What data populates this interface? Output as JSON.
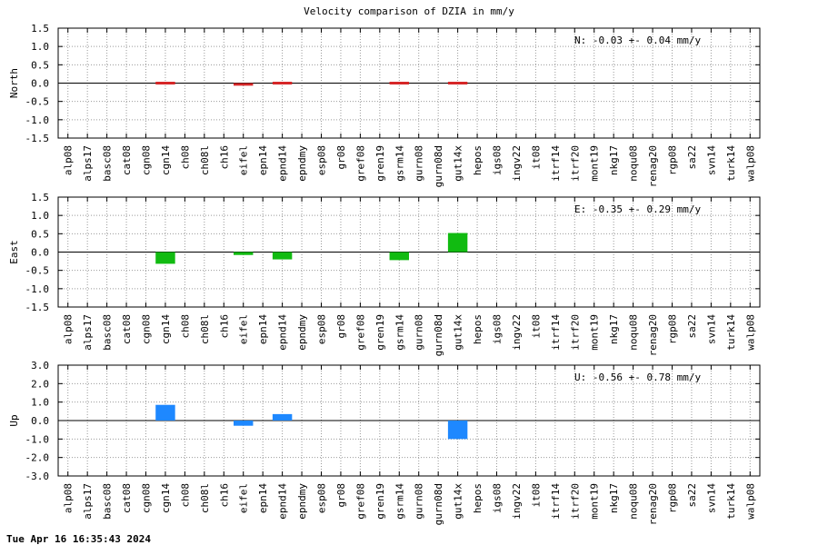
{
  "chart_data": {
    "title": "Velocity comparison of DZIA in mm/y",
    "timestamp": "Tue Apr 16 16:35:43 2024",
    "categories": [
      "alp08",
      "alps17",
      "basc08",
      "cat08",
      "cgn08",
      "cgn14",
      "ch08",
      "ch08l",
      "ch16",
      "eifel",
      "epn14",
      "epnd14",
      "epndmy",
      "esp08",
      "gr08",
      "gref08",
      "gren19",
      "gsrm14",
      "gurn08",
      "gurn08d",
      "gut14x",
      "hepos",
      "igs08",
      "ingv22",
      "it08",
      "itrf14",
      "itrf20",
      "mont19",
      "nkg17",
      "noqu08",
      "renag20",
      "rgp08",
      "sa22",
      "svn14",
      "turk14",
      "walp08"
    ],
    "panels": [
      {
        "type": "bar",
        "ylabel": "North",
        "ylim": [
          -1.5,
          1.5
        ],
        "yticks": [
          "1.5",
          "1.0",
          "0.5",
          "0.0",
          "-0.5",
          "-1.0",
          "-1.5"
        ],
        "ytick_values": [
          1.5,
          1.0,
          0.5,
          0.0,
          -0.5,
          -1.0,
          -1.5
        ],
        "color": "#d62728",
        "annotation": "N:  -0.03 +-  0.04 mm/y",
        "values": {
          "cgn14": -0.03,
          "eifel": -0.07,
          "epnd14": 0.04,
          "gsrm14": -0.04,
          "gut14x": 0.01
        }
      },
      {
        "type": "bar",
        "ylabel": "East",
        "ylim": [
          -1.5,
          1.5
        ],
        "yticks": [
          "1.5",
          "1.0",
          "0.5",
          "0.0",
          "-0.5",
          "-1.0",
          "-1.5"
        ],
        "ytick_values": [
          1.5,
          1.0,
          0.5,
          0.0,
          -0.5,
          -1.0,
          -1.5
        ],
        "color": "#11bb11",
        "annotation": "E:  -0.35 +-  0.29 mm/y",
        "values": {
          "cgn14": -0.32,
          "eifel": -0.08,
          "epnd14": -0.2,
          "gsrm14": -0.22,
          "gut14x": 0.52
        }
      },
      {
        "type": "bar",
        "ylabel": "Up",
        "ylim": [
          -3.0,
          3.0
        ],
        "yticks": [
          "3.0",
          "2.0",
          "1.0",
          "0.0",
          "-1.0",
          "-2.0",
          "-3.0"
        ],
        "ytick_values": [
          3.0,
          2.0,
          1.0,
          0.0,
          -1.0,
          -2.0,
          -3.0
        ],
        "color": "#1e88ff",
        "annotation": "U:  -0.56 +-  0.78 mm/y",
        "values": {
          "cgn14": 0.85,
          "eifel": -0.28,
          "epnd14": 0.35,
          "gut14x": -1.0
        }
      }
    ],
    "grid": true
  }
}
